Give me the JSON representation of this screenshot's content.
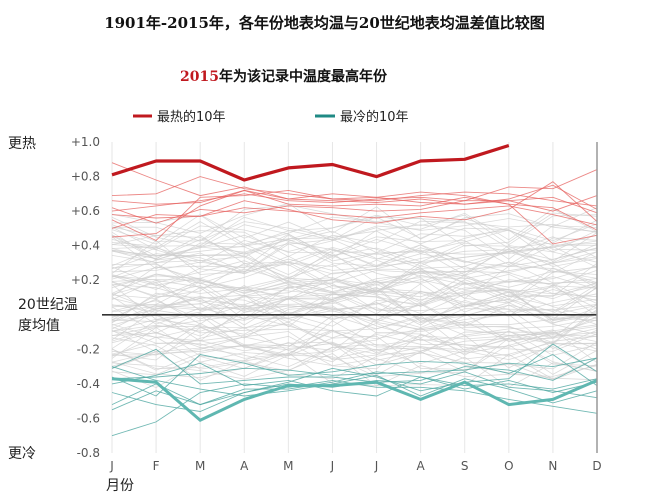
{
  "title": "1901年-2015年，各年份地表均温与20世纪地表均温差值比较图",
  "subtitle": {
    "year": "2015",
    "rest": "年为该记录中温度最高年份"
  },
  "legend": [
    {
      "label": "最热的10年",
      "color": "#c0191f"
    },
    {
      "label": "最冷的10年",
      "color": "#1f8a84"
    }
  ],
  "chart_data": {
    "type": "line",
    "x": [
      "J",
      "F",
      "M",
      "A",
      "M",
      "J",
      "J",
      "A",
      "S",
      "O",
      "N",
      "D"
    ],
    "xlabel": "月份",
    "ylim": [
      -0.8,
      1.0
    ],
    "yticks": [
      "+1.0",
      "+0.8",
      "+0.6",
      "+0.4",
      "+0.2",
      "",
      "-0.2",
      "-0.4",
      "-0.6",
      "-0.8"
    ],
    "baseline_label": "20世纪温度均值",
    "top_label": "更热",
    "bottom_label": "更冷",
    "highlight": {
      "name": "2015",
      "color": "#c0191f",
      "values": [
        0.81,
        0.89,
        0.89,
        0.78,
        0.85,
        0.87,
        0.8,
        0.89,
        0.9,
        0.98,
        null,
        null
      ]
    },
    "cold_highlight": {
      "color": "#5fb7b1",
      "values": [
        -0.37,
        -0.39,
        -0.61,
        -0.49,
        -0.41,
        -0.41,
        -0.39,
        -0.49,
        -0.39,
        -0.52,
        -0.49,
        -0.38
      ]
    },
    "hot_years": [
      [
        0.69,
        0.7,
        0.8,
        0.73,
        0.7,
        0.67,
        0.66,
        0.69,
        0.71,
        0.7,
        0.66,
        0.63
      ],
      [
        0.6,
        0.63,
        0.66,
        0.7,
        0.66,
        0.65,
        0.67,
        0.68,
        0.66,
        0.66,
        0.68,
        0.59
      ],
      [
        0.58,
        0.56,
        0.57,
        0.62,
        0.6,
        0.58,
        0.56,
        0.59,
        0.61,
        0.63,
        0.58,
        0.52
      ],
      [
        0.45,
        0.47,
        0.63,
        0.72,
        0.67,
        0.66,
        0.65,
        0.67,
        0.64,
        0.67,
        0.75,
        0.61
      ],
      [
        0.66,
        0.64,
        0.65,
        0.72,
        0.64,
        0.63,
        0.64,
        0.63,
        0.68,
        0.64,
        0.62,
        0.49
      ],
      [
        0.62,
        0.53,
        0.61,
        0.59,
        0.63,
        0.62,
        0.6,
        0.61,
        0.66,
        0.74,
        0.73,
        0.84
      ],
      [
        0.88,
        0.78,
        0.69,
        0.74,
        0.67,
        0.7,
        0.68,
        0.71,
        0.69,
        0.64,
        0.41,
        0.46
      ],
      [
        0.55,
        0.43,
        0.68,
        0.69,
        0.72,
        0.67,
        0.68,
        0.65,
        0.64,
        0.66,
        0.6,
        0.69
      ],
      [
        0.5,
        0.58,
        0.57,
        0.66,
        0.61,
        0.55,
        0.53,
        0.57,
        0.55,
        0.61,
        0.77,
        0.54
      ]
    ],
    "cold_years": [
      [
        -0.55,
        -0.44,
        -0.52,
        -0.43,
        -0.43,
        -0.39,
        -0.33,
        -0.36,
        -0.41,
        -0.4,
        -0.43,
        -0.37
      ],
      [
        -0.36,
        -0.47,
        -0.23,
        -0.28,
        -0.35,
        -0.33,
        -0.29,
        -0.27,
        -0.28,
        -0.34,
        -0.23,
        -0.41
      ],
      [
        -0.7,
        -0.62,
        -0.45,
        -0.4,
        -0.42,
        -0.38,
        -0.42,
        -0.42,
        -0.44,
        -0.49,
        -0.53,
        -0.57
      ],
      [
        -0.31,
        -0.2,
        -0.4,
        -0.38,
        -0.36,
        -0.36,
        -0.39,
        -0.38,
        -0.3,
        -0.32,
        -0.38,
        -0.25
      ],
      [
        -0.45,
        -0.52,
        -0.56,
        -0.45,
        -0.4,
        -0.42,
        -0.38,
        -0.4,
        -0.33,
        -0.42,
        -0.44,
        -0.48
      ],
      [
        -0.3,
        -0.38,
        -0.43,
        -0.47,
        -0.44,
        -0.4,
        -0.35,
        -0.47,
        -0.37,
        -0.43,
        -0.51,
        -0.44
      ],
      [
        -0.52,
        -0.4,
        -0.52,
        -0.45,
        -0.39,
        -0.31,
        -0.36,
        -0.44,
        -0.39,
        -0.37,
        -0.17,
        -0.33
      ],
      [
        -0.37,
        -0.36,
        -0.34,
        -0.31,
        -0.32,
        -0.35,
        -0.34,
        -0.33,
        -0.32,
        -0.28,
        -0.3,
        -0.25
      ],
      [
        -0.4,
        -0.35,
        -0.28,
        -0.41,
        -0.38,
        -0.44,
        -0.47,
        -0.36,
        -0.43,
        -0.38,
        -0.45,
        -0.39
      ]
    ],
    "grid_vertical": true
  }
}
